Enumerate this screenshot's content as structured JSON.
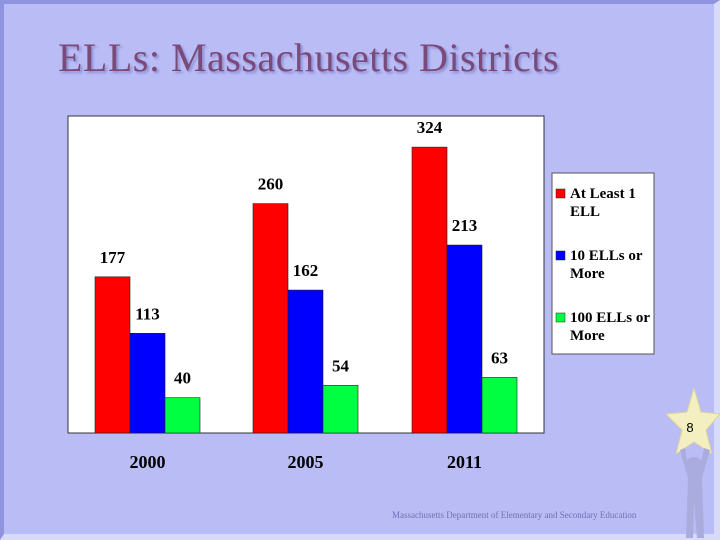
{
  "slide": {
    "title": "ELLs: Massachusetts Districts",
    "footer": "Massachusetts Department of Elementary and Secondary Education",
    "page_number": "8"
  },
  "colors": {
    "background": "#b9bcf5",
    "title": "#7a4a78",
    "plot_bg": "#ffffff"
  },
  "chart_data": {
    "type": "bar",
    "title": "",
    "xlabel": "",
    "ylabel": "",
    "categories": [
      "2000",
      "2005",
      "2011"
    ],
    "series": [
      {
        "name": "At Least 1 ELL",
        "color": "#ff0000",
        "values": [
          177,
          260,
          324
        ]
      },
      {
        "name": "10 ELLs or More",
        "color": "#0000ff",
        "values": [
          113,
          162,
          213
        ]
      },
      {
        "name": "100 ELLs or More",
        "color": "#00ff40",
        "values": [
          40,
          54,
          63
        ]
      }
    ],
    "ylim": [
      0,
      340
    ],
    "grid": false,
    "legend": "right"
  }
}
